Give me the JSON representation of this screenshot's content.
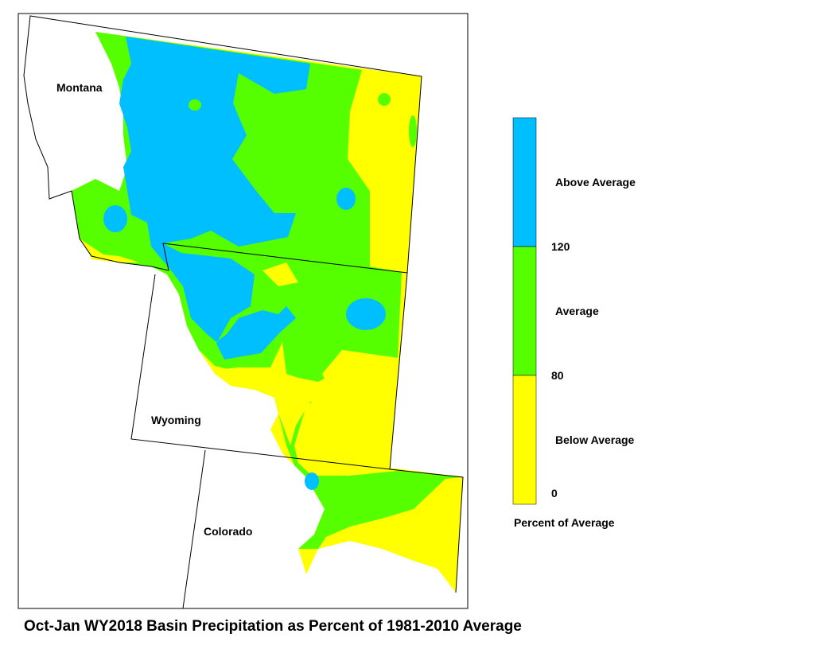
{
  "title": "Oct-Jan WY2018 Basin Precipitation as Percent of 1981-2010 Average",
  "map": {
    "labels": [
      "Montana",
      "Wyoming",
      "Colorado"
    ]
  },
  "legend": {
    "classes": [
      {
        "label": "Above Average",
        "color": "#00bfff"
      },
      {
        "label": "Average",
        "color": "#55ff00"
      },
      {
        "label": "Below Average",
        "color": "#ffff00"
      }
    ],
    "ticks": [
      120,
      80,
      0
    ],
    "caption": "Percent of Average"
  }
}
